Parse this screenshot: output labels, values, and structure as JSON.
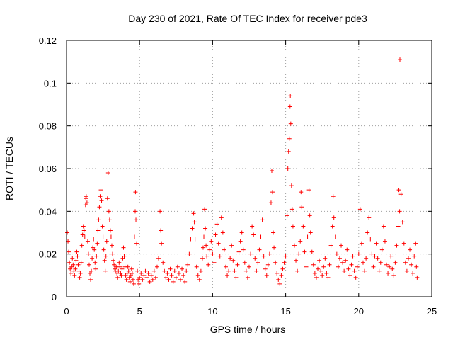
{
  "chart_data": {
    "type": "scatter",
    "title": "Day 230 of 2021, Rate Of TEC Index for receiver pde3",
    "xlabel": "GPS time / hours",
    "ylabel": "ROTI / TECUs",
    "xlim": [
      0,
      25
    ],
    "ylim": [
      0,
      0.12
    ],
    "xticks": [
      0,
      5,
      10,
      15,
      20,
      25
    ],
    "xtick_labels": [
      "0",
      "5",
      "10",
      "15",
      "20",
      "25"
    ],
    "yticks": [
      0,
      0.02,
      0.04,
      0.06,
      0.08,
      0.1,
      0.12
    ],
    "ytick_labels": [
      "0",
      "0.02",
      "0.04",
      "0.06",
      "0.08",
      "0.1",
      "0.12"
    ],
    "grid": true,
    "legend": "none",
    "marker": "plus",
    "color": "#ff0000",
    "series": [
      {
        "points": [
          [
            0.05,
            0.03
          ],
          [
            0.1,
            0.026
          ],
          [
            0.15,
            0.021
          ],
          [
            0.2,
            0.016
          ],
          [
            0.25,
            0.013
          ],
          [
            0.3,
            0.011
          ],
          [
            0.35,
            0.014
          ],
          [
            0.4,
            0.018
          ],
          [
            0.45,
            0.015
          ],
          [
            0.5,
            0.012
          ],
          [
            0.55,
            0.01
          ],
          [
            0.6,
            0.013
          ],
          [
            0.65,
            0.017
          ],
          [
            0.7,
            0.021
          ],
          [
            0.75,
            0.019
          ],
          [
            0.8,
            0.015
          ],
          [
            0.85,
            0.012
          ],
          [
            0.9,
            0.009
          ],
          [
            0.95,
            0.011
          ],
          [
            1.0,
            0.016
          ],
          [
            1.05,
            0.024
          ],
          [
            1.1,
            0.029
          ],
          [
            1.15,
            0.033
          ],
          [
            1.2,
            0.031
          ],
          [
            1.25,
            0.028
          ],
          [
            1.3,
            0.043
          ],
          [
            1.32,
            0.046
          ],
          [
            1.35,
            0.047
          ],
          [
            1.4,
            0.044
          ],
          [
            1.45,
            0.026
          ],
          [
            1.5,
            0.02
          ],
          [
            1.55,
            0.015
          ],
          [
            1.6,
            0.011
          ],
          [
            1.65,
            0.008
          ],
          [
            1.7,
            0.012
          ],
          [
            1.75,
            0.018
          ],
          [
            1.8,
            0.023
          ],
          [
            1.85,
            0.027
          ],
          [
            1.9,
            0.022
          ],
          [
            1.95,
            0.016
          ],
          [
            2.0,
            0.013
          ],
          [
            2.05,
            0.019
          ],
          [
            2.1,
            0.025
          ],
          [
            2.15,
            0.031
          ],
          [
            2.2,
            0.036
          ],
          [
            2.25,
            0.042
          ],
          [
            2.3,
            0.047
          ],
          [
            2.35,
            0.05
          ],
          [
            2.4,
            0.045
          ],
          [
            2.45,
            0.033
          ],
          [
            2.5,
            0.028
          ],
          [
            2.55,
            0.022
          ],
          [
            2.6,
            0.017
          ],
          [
            2.65,
            0.012
          ],
          [
            2.7,
            0.019
          ],
          [
            2.75,
            0.026
          ],
          [
            2.8,
            0.046
          ],
          [
            2.85,
            0.058
          ],
          [
            2.9,
            0.04
          ],
          [
            2.95,
            0.036
          ],
          [
            3.0,
            0.031
          ],
          [
            3.05,
            0.028
          ],
          [
            3.1,
            0.024
          ],
          [
            3.15,
            0.02
          ],
          [
            3.2,
            0.017
          ],
          [
            3.25,
            0.015
          ],
          [
            3.3,
            0.013
          ],
          [
            3.35,
            0.012
          ],
          [
            3.4,
            0.014
          ],
          [
            3.45,
            0.011
          ],
          [
            3.5,
            0.009
          ],
          [
            3.55,
            0.012
          ],
          [
            3.6,
            0.016
          ],
          [
            3.65,
            0.014
          ],
          [
            3.7,
            0.011
          ],
          [
            3.75,
            0.01
          ],
          [
            3.8,
            0.013
          ],
          [
            3.85,
            0.018
          ],
          [
            3.9,
            0.023
          ],
          [
            3.95,
            0.019
          ],
          [
            4.0,
            0.014
          ],
          [
            4.05,
            0.01
          ],
          [
            4.1,
            0.008
          ],
          [
            4.15,
            0.011
          ],
          [
            4.2,
            0.014
          ],
          [
            4.25,
            0.012
          ],
          [
            4.3,
            0.009
          ],
          [
            4.35,
            0.007
          ],
          [
            4.4,
            0.01
          ],
          [
            4.45,
            0.013
          ],
          [
            4.5,
            0.011
          ],
          [
            4.55,
            0.008
          ],
          [
            4.6,
            0.006
          ],
          [
            4.65,
            0.028
          ],
          [
            4.7,
            0.04
          ],
          [
            4.72,
            0.049
          ],
          [
            4.75,
            0.036
          ],
          [
            4.8,
            0.025
          ],
          [
            4.85,
            0.012
          ],
          [
            4.9,
            0.008
          ],
          [
            4.95,
            0.006
          ],
          [
            5.0,
            0.009
          ],
          [
            5.1,
            0.011
          ],
          [
            5.2,
            0.008
          ],
          [
            5.3,
            0.01
          ],
          [
            5.4,
            0.012
          ],
          [
            5.5,
            0.009
          ],
          [
            5.6,
            0.011
          ],
          [
            5.7,
            0.007
          ],
          [
            5.8,
            0.01
          ],
          [
            5.9,
            0.008
          ],
          [
            6.0,
            0.012
          ],
          [
            6.1,
            0.009
          ],
          [
            6.2,
            0.014
          ],
          [
            6.3,
            0.018
          ],
          [
            6.4,
            0.04
          ],
          [
            6.45,
            0.031
          ],
          [
            6.5,
            0.025
          ],
          [
            6.6,
            0.016
          ],
          [
            6.7,
            0.012
          ],
          [
            6.8,
            0.009
          ],
          [
            6.9,
            0.011
          ],
          [
            7.0,
            0.008
          ],
          [
            7.1,
            0.013
          ],
          [
            7.2,
            0.01
          ],
          [
            7.3,
            0.007
          ],
          [
            7.4,
            0.012
          ],
          [
            7.5,
            0.009
          ],
          [
            7.6,
            0.014
          ],
          [
            7.7,
            0.011
          ],
          [
            7.8,
            0.008
          ],
          [
            7.9,
            0.013
          ],
          [
            8.0,
            0.01
          ],
          [
            8.1,
            0.007
          ],
          [
            8.2,
            0.012
          ],
          [
            8.3,
            0.015
          ],
          [
            8.4,
            0.02
          ],
          [
            8.5,
            0.027
          ],
          [
            8.6,
            0.032
          ],
          [
            8.7,
            0.039
          ],
          [
            8.75,
            0.035
          ],
          [
            8.8,
            0.027
          ],
          [
            8.9,
            0.014
          ],
          [
            9.0,
            0.01
          ],
          [
            9.1,
            0.008
          ],
          [
            9.2,
            0.012
          ],
          [
            9.3,
            0.018
          ],
          [
            9.35,
            0.023
          ],
          [
            9.4,
            0.028
          ],
          [
            9.45,
            0.041
          ],
          [
            9.5,
            0.032
          ],
          [
            9.55,
            0.024
          ],
          [
            9.6,
            0.019
          ],
          [
            9.7,
            0.015
          ],
          [
            9.8,
            0.022
          ],
          [
            9.9,
            0.026
          ],
          [
            10.0,
            0.02
          ],
          [
            10.1,
            0.016
          ],
          [
            10.2,
            0.029
          ],
          [
            10.3,
            0.034
          ],
          [
            10.4,
            0.025
          ],
          [
            10.5,
            0.019
          ],
          [
            10.6,
            0.037
          ],
          [
            10.7,
            0.03
          ],
          [
            10.8,
            0.022
          ],
          [
            10.9,
            0.014
          ],
          [
            11.0,
            0.01
          ],
          [
            11.1,
            0.012
          ],
          [
            11.2,
            0.018
          ],
          [
            11.3,
            0.024
          ],
          [
            11.4,
            0.017
          ],
          [
            11.5,
            0.012
          ],
          [
            11.6,
            0.009
          ],
          [
            11.7,
            0.015
          ],
          [
            11.8,
            0.021
          ],
          [
            11.9,
            0.026
          ],
          [
            12.0,
            0.03
          ],
          [
            12.1,
            0.022
          ],
          [
            12.2,
            0.016
          ],
          [
            12.3,
            0.012
          ],
          [
            12.4,
            0.009
          ],
          [
            12.5,
            0.014
          ],
          [
            12.6,
            0.02
          ],
          [
            12.7,
            0.033
          ],
          [
            12.8,
            0.029
          ],
          [
            12.9,
            0.018
          ],
          [
            13.0,
            0.012
          ],
          [
            13.1,
            0.016
          ],
          [
            13.2,
            0.022
          ],
          [
            13.3,
            0.028
          ],
          [
            13.4,
            0.036
          ],
          [
            13.5,
            0.019
          ],
          [
            13.6,
            0.013
          ],
          [
            13.7,
            0.01
          ],
          [
            13.8,
            0.015
          ],
          [
            13.9,
            0.02
          ],
          [
            14.0,
            0.044
          ],
          [
            14.05,
            0.059
          ],
          [
            14.1,
            0.049
          ],
          [
            14.15,
            0.03
          ],
          [
            14.2,
            0.023
          ],
          [
            14.3,
            0.016
          ],
          [
            14.4,
            0.011
          ],
          [
            14.5,
            0.008
          ],
          [
            14.6,
            0.006
          ],
          [
            14.7,
            0.01
          ],
          [
            14.8,
            0.013
          ],
          [
            14.9,
            0.016
          ],
          [
            15.0,
            0.019
          ],
          [
            15.1,
            0.038
          ],
          [
            15.15,
            0.06
          ],
          [
            15.2,
            0.068
          ],
          [
            15.25,
            0.074
          ],
          [
            15.3,
            0.089
          ],
          [
            15.32,
            0.094
          ],
          [
            15.35,
            0.081
          ],
          [
            15.4,
            0.052
          ],
          [
            15.45,
            0.041
          ],
          [
            15.5,
            0.033
          ],
          [
            15.6,
            0.024
          ],
          [
            15.7,
            0.017
          ],
          [
            15.8,
            0.012
          ],
          [
            15.9,
            0.02
          ],
          [
            16.0,
            0.026
          ],
          [
            16.05,
            0.049
          ],
          [
            16.1,
            0.042
          ],
          [
            16.2,
            0.033
          ],
          [
            16.3,
            0.021
          ],
          [
            16.4,
            0.014
          ],
          [
            16.5,
            0.028
          ],
          [
            16.6,
            0.05
          ],
          [
            16.65,
            0.038
          ],
          [
            16.7,
            0.03
          ],
          [
            16.8,
            0.021
          ],
          [
            16.9,
            0.015
          ],
          [
            17.0,
            0.011
          ],
          [
            17.1,
            0.009
          ],
          [
            17.2,
            0.013
          ],
          [
            17.3,
            0.017
          ],
          [
            17.4,
            0.012
          ],
          [
            17.5,
            0.01
          ],
          [
            17.6,
            0.014
          ],
          [
            17.7,
            0.018
          ],
          [
            17.8,
            0.011
          ],
          [
            17.9,
            0.009
          ],
          [
            18.0,
            0.015
          ],
          [
            18.1,
            0.024
          ],
          [
            18.2,
            0.033
          ],
          [
            18.25,
            0.047
          ],
          [
            18.3,
            0.037
          ],
          [
            18.4,
            0.028
          ],
          [
            18.5,
            0.02
          ],
          [
            18.6,
            0.014
          ],
          [
            18.7,
            0.018
          ],
          [
            18.8,
            0.024
          ],
          [
            18.9,
            0.016
          ],
          [
            19.0,
            0.012
          ],
          [
            19.1,
            0.017
          ],
          [
            19.2,
            0.022
          ],
          [
            19.3,
            0.013
          ],
          [
            19.4,
            0.01
          ],
          [
            19.5,
            0.015
          ],
          [
            19.6,
            0.019
          ],
          [
            19.7,
            0.012
          ],
          [
            19.8,
            0.009
          ],
          [
            19.9,
            0.014
          ],
          [
            20.0,
            0.02
          ],
          [
            20.1,
            0.041
          ],
          [
            20.2,
            0.025
          ],
          [
            20.3,
            0.016
          ],
          [
            20.4,
            0.012
          ],
          [
            20.5,
            0.018
          ],
          [
            20.6,
            0.03
          ],
          [
            20.7,
            0.037
          ],
          [
            20.8,
            0.027
          ],
          [
            20.9,
            0.02
          ],
          [
            21.0,
            0.014
          ],
          [
            21.1,
            0.019
          ],
          [
            21.2,
            0.025
          ],
          [
            21.3,
            0.018
          ],
          [
            21.4,
            0.012
          ],
          [
            21.5,
            0.016
          ],
          [
            21.6,
            0.022
          ],
          [
            21.7,
            0.033
          ],
          [
            21.8,
            0.026
          ],
          [
            21.9,
            0.015
          ],
          [
            22.0,
            0.011
          ],
          [
            22.1,
            0.014
          ],
          [
            22.2,
            0.019
          ],
          [
            22.3,
            0.013
          ],
          [
            22.4,
            0.01
          ],
          [
            22.5,
            0.016
          ],
          [
            22.6,
            0.024
          ],
          [
            22.7,
            0.033
          ],
          [
            22.75,
            0.05
          ],
          [
            22.8,
            0.04
          ],
          [
            22.82,
            0.111
          ],
          [
            22.9,
            0.048
          ],
          [
            23.0,
            0.035
          ],
          [
            23.1,
            0.025
          ],
          [
            23.2,
            0.016
          ],
          [
            23.3,
            0.012
          ],
          [
            23.4,
            0.018
          ],
          [
            23.5,
            0.022
          ],
          [
            23.6,
            0.015
          ],
          [
            23.7,
            0.011
          ],
          [
            23.8,
            0.019
          ],
          [
            23.9,
            0.025
          ],
          [
            23.95,
            0.014
          ],
          [
            24.0,
            0.009
          ]
        ]
      }
    ]
  }
}
